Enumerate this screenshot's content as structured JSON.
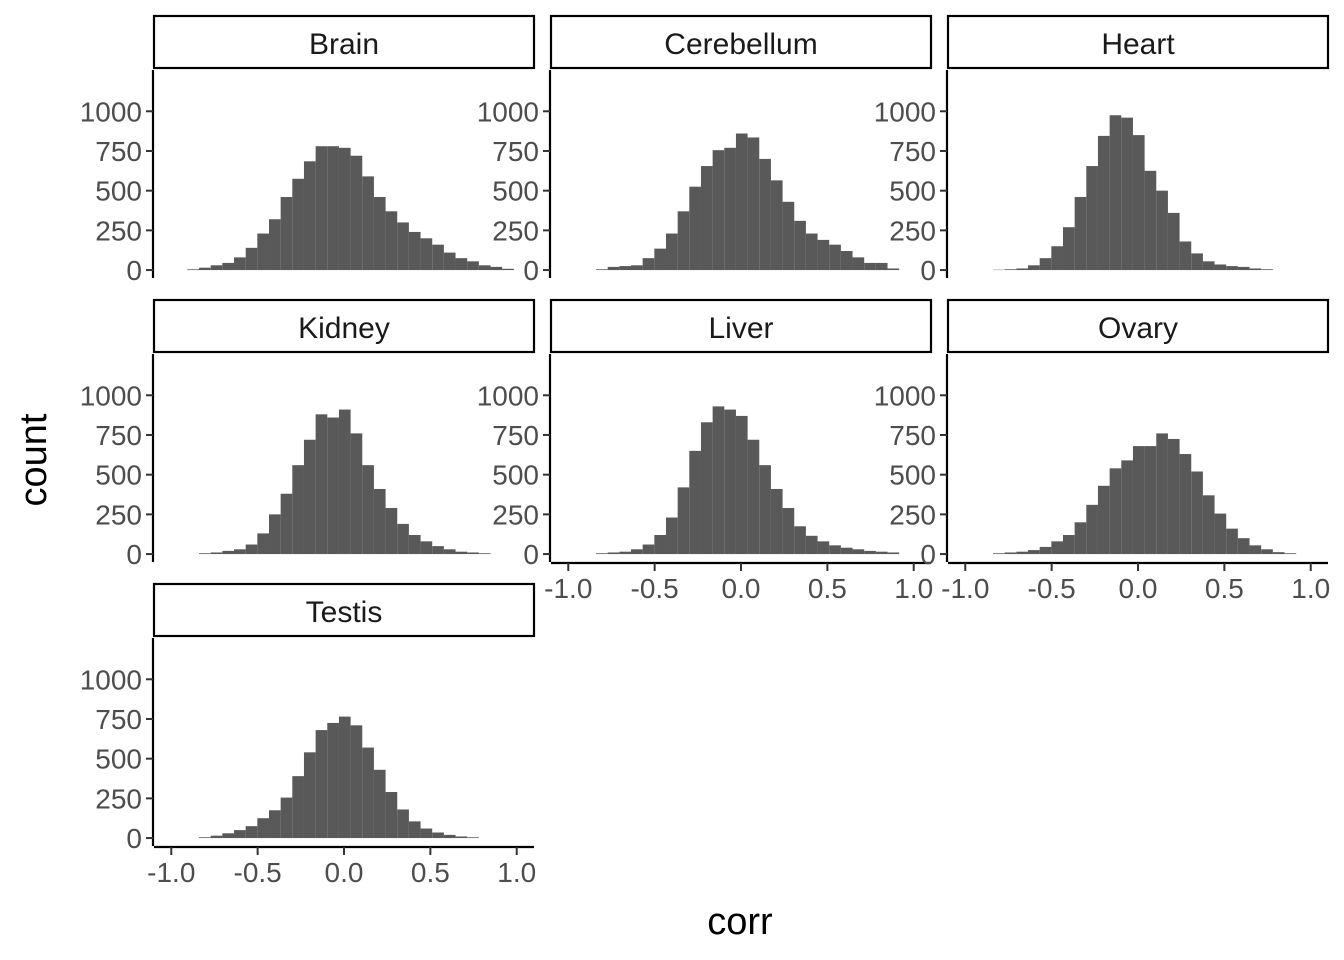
{
  "chart_data": {
    "type": "bar",
    "subtype": "faceted-histogram",
    "xlabel": "corr",
    "ylabel": "count",
    "xlim": [
      -1.0,
      1.0
    ],
    "ylim": [
      0,
      1000
    ],
    "x_ticks": [
      "-1.0",
      "-0.5",
      "0.0",
      "0.5",
      "1.0"
    ],
    "y_ticks": [
      "0",
      "250",
      "500",
      "750",
      "1000"
    ],
    "grid": false,
    "bar_color": "#595959",
    "bin_centers": [
      -0.9405,
      -0.873,
      -0.8055,
      -0.738,
      -0.6705,
      -0.603,
      -0.5355,
      -0.468,
      -0.4005,
      -0.333,
      -0.2655,
      -0.198,
      -0.1305,
      -0.063,
      0.0045,
      0.072,
      0.1395,
      0.207,
      0.2745,
      0.342,
      0.4095,
      0.477,
      0.5445,
      0.612,
      0.6795,
      0.747,
      0.8145,
      0.882,
      0.9495
    ],
    "panels": [
      {
        "name": "Brain",
        "values": [
          0,
          5,
          15,
          30,
          45,
          80,
          140,
          230,
          320,
          460,
          575,
          685,
          780,
          780,
          770,
          720,
          590,
          460,
          370,
          300,
          240,
          200,
          160,
          110,
          75,
          55,
          30,
          20,
          8
        ]
      },
      {
        "name": "Cerebellum",
        "values": [
          0,
          0,
          5,
          20,
          25,
          30,
          75,
          135,
          230,
          370,
          525,
          655,
          755,
          770,
          860,
          835,
          700,
          565,
          430,
          310,
          230,
          190,
          160,
          120,
          80,
          45,
          45,
          10,
          0
        ]
      },
      {
        "name": "Heart",
        "values": [
          0,
          0,
          2,
          5,
          10,
          30,
          75,
          150,
          270,
          460,
          655,
          845,
          975,
          960,
          850,
          625,
          500,
          360,
          180,
          105,
          55,
          35,
          25,
          20,
          10,
          5,
          0,
          0,
          0
        ]
      },
      {
        "name": "Kidney",
        "values": [
          0,
          0,
          5,
          10,
          20,
          30,
          60,
          130,
          250,
          380,
          560,
          720,
          880,
          860,
          910,
          760,
          560,
          410,
          290,
          190,
          120,
          80,
          50,
          30,
          15,
          10,
          5,
          0,
          0
        ]
      },
      {
        "name": "Liver",
        "values": [
          0,
          0,
          5,
          10,
          15,
          30,
          60,
          120,
          230,
          420,
          650,
          830,
          930,
          910,
          870,
          720,
          560,
          410,
          290,
          175,
          115,
          80,
          55,
          40,
          30,
          20,
          15,
          10,
          0
        ]
      },
      {
        "name": "Ovary",
        "values": [
          0,
          0,
          5,
          10,
          15,
          25,
          45,
          80,
          120,
          200,
          310,
          430,
          540,
          590,
          680,
          680,
          760,
          725,
          630,
          520,
          370,
          255,
          160,
          100,
          55,
          30,
          12,
          5,
          0
        ]
      },
      {
        "name": "Testis",
        "values": [
          0,
          0,
          5,
          15,
          30,
          50,
          75,
          125,
          175,
          255,
          390,
          540,
          680,
          725,
          765,
          710,
          570,
          430,
          290,
          180,
          105,
          60,
          35,
          20,
          10,
          5,
          0,
          0,
          0
        ]
      }
    ]
  }
}
